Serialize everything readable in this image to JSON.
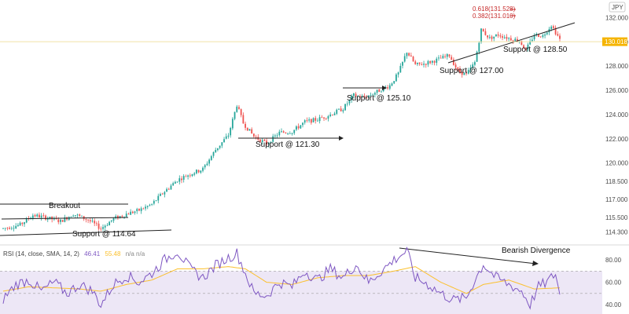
{
  "chart_data": {
    "type": "candlestick",
    "currency_label": "JPY",
    "current_price": 130.018,
    "current_price_label": "130.018",
    "price_axis": {
      "range": [
        113.5,
        133.2
      ],
      "ticks": [
        "114.300",
        "115.500",
        "117.000",
        "118.500",
        "120.000",
        "122.000",
        "124.000",
        "126.000",
        "128.000",
        "130.000",
        "132.000"
      ],
      "tick_values": [
        114.3,
        115.5,
        117.0,
        118.5,
        120.0,
        122.0,
        124.0,
        126.0,
        128.0,
        130.0,
        132.0
      ]
    },
    "price_path_keypoints": [
      [
        0,
        114.6
      ],
      [
        8,
        114.9
      ],
      [
        14,
        115.7
      ],
      [
        20,
        115.5
      ],
      [
        27,
        115.2
      ],
      [
        33,
        115.8
      ],
      [
        40,
        115.3
      ],
      [
        46,
        114.6
      ],
      [
        52,
        115.4
      ],
      [
        58,
        115.8
      ],
      [
        64,
        116.1
      ],
      [
        70,
        116.6
      ],
      [
        75,
        117.5
      ],
      [
        82,
        118.6
      ],
      [
        88,
        119.1
      ],
      [
        94,
        119.5
      ],
      [
        100,
        121.1
      ],
      [
        106,
        122.3
      ],
      [
        110,
        124.8
      ],
      [
        113,
        123.3
      ],
      [
        118,
        122.2
      ],
      [
        124,
        121.6
      ],
      [
        130,
        122.5
      ],
      [
        136,
        122.6
      ],
      [
        142,
        123.4
      ],
      [
        148,
        123.6
      ],
      [
        154,
        124.0
      ],
      [
        160,
        124.5
      ],
      [
        165,
        125.6
      ],
      [
        170,
        125.4
      ],
      [
        176,
        125.9
      ],
      [
        182,
        126.4
      ],
      [
        186,
        127.4
      ],
      [
        190,
        129.2
      ],
      [
        194,
        128.1
      ],
      [
        198,
        128.2
      ],
      [
        204,
        128.5
      ],
      [
        210,
        128.9
      ],
      [
        214,
        127.6
      ],
      [
        218,
        127.3
      ],
      [
        222,
        128.3
      ],
      [
        225,
        131.0
      ],
      [
        229,
        130.3
      ],
      [
        233,
        130.6
      ],
      [
        238,
        130.3
      ],
      [
        243,
        130.1
      ],
      [
        246,
        129.3
      ],
      [
        250,
        130.6
      ],
      [
        254,
        130.5
      ],
      [
        258,
        131.4
      ],
      [
        262,
        130.2
      ]
    ],
    "support_levels": [
      {
        "label": "Support @ 114.64",
        "value": 114.64
      },
      {
        "label": "Support @ 121.30",
        "value": 121.3
      },
      {
        "label": "Support @ 125.10",
        "value": 125.1
      },
      {
        "label": "Support @ 127.00",
        "value": 127.0
      },
      {
        "label": "Support @ 128.50",
        "value": 128.5
      }
    ],
    "breakout_label": "Breakout",
    "fibonacci": [
      {
        "label": "0.618(131.528)",
        "value": 131.528
      },
      {
        "label": "0.382(131.010)",
        "value": 131.01
      }
    ],
    "rsi": {
      "legend_prefix": "RSI (14, close, SMA, 14, 2)",
      "value": "46.41",
      "sma_value": "55.48",
      "extra": "n/a  n/a",
      "range": [
        33,
        92
      ],
      "ticks": [
        "40.00",
        "60.00",
        "80.00"
      ],
      "tick_values": [
        40,
        60,
        80
      ],
      "band": [
        30,
        70
      ],
      "annotation": "Bearish Divergence",
      "rsi_keypoints": [
        [
          0,
          45
        ],
        [
          6,
          58
        ],
        [
          12,
          62
        ],
        [
          18,
          52
        ],
        [
          24,
          60
        ],
        [
          30,
          50
        ],
        [
          36,
          58
        ],
        [
          42,
          52
        ],
        [
          46,
          40
        ],
        [
          52,
          58
        ],
        [
          58,
          66
        ],
        [
          64,
          60
        ],
        [
          70,
          68
        ],
        [
          76,
          80
        ],
        [
          82,
          88
        ],
        [
          88,
          72
        ],
        [
          94,
          64
        ],
        [
          100,
          75
        ],
        [
          106,
          82
        ],
        [
          110,
          86
        ],
        [
          114,
          68
        ],
        [
          118,
          50
        ],
        [
          124,
          48
        ],
        [
          130,
          60
        ],
        [
          136,
          56
        ],
        [
          142,
          70
        ],
        [
          148,
          62
        ],
        [
          154,
          72
        ],
        [
          160,
          64
        ],
        [
          166,
          76
        ],
        [
          172,
          60
        ],
        [
          178,
          70
        ],
        [
          184,
          80
        ],
        [
          190,
          88
        ],
        [
          194,
          64
        ],
        [
          200,
          58
        ],
        [
          206,
          50
        ],
        [
          212,
          44
        ],
        [
          218,
          46
        ],
        [
          222,
          62
        ],
        [
          226,
          76
        ],
        [
          232,
          64
        ],
        [
          238,
          58
        ],
        [
          244,
          52
        ],
        [
          248,
          40
        ],
        [
          252,
          56
        ],
        [
          256,
          60
        ],
        [
          260,
          68
        ],
        [
          262,
          48
        ]
      ],
      "sma_keypoints": [
        [
          0,
          52
        ],
        [
          12,
          56
        ],
        [
          24,
          55
        ],
        [
          36,
          54
        ],
        [
          46,
          52
        ],
        [
          58,
          58
        ],
        [
          70,
          62
        ],
        [
          82,
          72
        ],
        [
          94,
          72
        ],
        [
          106,
          74
        ],
        [
          114,
          72
        ],
        [
          124,
          60
        ],
        [
          136,
          58
        ],
        [
          148,
          64
        ],
        [
          160,
          66
        ],
        [
          172,
          66
        ],
        [
          184,
          70
        ],
        [
          194,
          74
        ],
        [
          206,
          60
        ],
        [
          218,
          50
        ],
        [
          226,
          58
        ],
        [
          238,
          62
        ],
        [
          250,
          54
        ],
        [
          262,
          55
        ]
      ]
    },
    "colors": {
      "up": "#26a69a",
      "down": "#ef5350",
      "rsi_line": "#7e57c2",
      "rsi_sma": "#fbc02d",
      "rsi_band": "#ede7f6",
      "price_line": "#f0e3a8",
      "badge": "#f5b400"
    }
  }
}
